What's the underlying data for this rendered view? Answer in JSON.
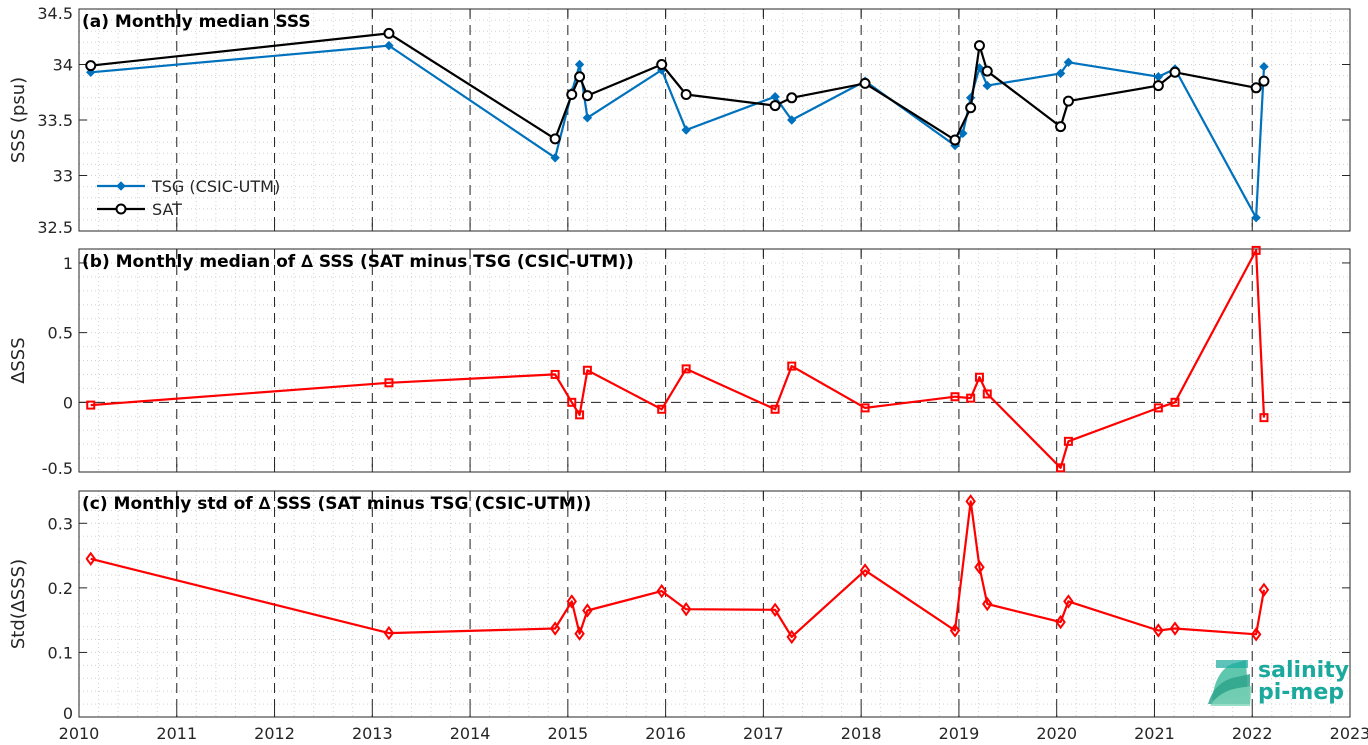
{
  "x_axis": {
    "min": 2010,
    "max": 2023,
    "ticks": [
      "2010",
      "2011",
      "2012",
      "2013",
      "2014",
      "2015",
      "2016",
      "2017",
      "2018",
      "2019",
      "2020",
      "2021",
      "2022",
      "2023"
    ]
  },
  "chart_data": [
    {
      "type": "line",
      "title": "(a) Monthly median SSS",
      "ylabel": "SSS (psu)",
      "ylim": [
        32.5,
        34.5
      ],
      "yticks": [
        "32.5",
        "33",
        "33.5",
        "34",
        "34.5"
      ],
      "legend_position": "bottom-left",
      "series": [
        {
          "name": "TSG (CSIC-UTM)",
          "color": "#0072BD",
          "marker": "dot",
          "x": [
            2010.12,
            2013.17,
            2014.87,
            2015.04,
            2015.12,
            2015.2,
            2015.96,
            2016.21,
            2017.12,
            2017.29,
            2018.04,
            2018.96,
            2019.04,
            2019.12,
            2019.21,
            2019.29,
            2020.04,
            2020.12,
            2021.04,
            2021.21,
            2022.04,
            2022.12
          ],
          "values": [
            33.93,
            34.17,
            33.16,
            33.75,
            34.0,
            33.52,
            33.95,
            33.41,
            33.71,
            33.5,
            33.85,
            33.27,
            33.38,
            33.7,
            33.97,
            33.81,
            33.92,
            34.02,
            33.89,
            33.96,
            32.62,
            33.98
          ]
        },
        {
          "name": "SAT",
          "color": "#000000",
          "marker": "circle",
          "x": [
            2010.12,
            2013.17,
            2014.87,
            2015.04,
            2015.12,
            2015.2,
            2015.96,
            2016.21,
            2017.12,
            2017.29,
            2018.04,
            2018.96,
            2019.12,
            2019.21,
            2019.29,
            2020.04,
            2020.12,
            2021.04,
            2021.21,
            2022.04,
            2022.12
          ],
          "values": [
            33.99,
            34.28,
            33.33,
            33.73,
            33.89,
            33.72,
            34.0,
            33.73,
            33.63,
            33.7,
            33.83,
            33.32,
            33.61,
            34.17,
            33.94,
            33.44,
            33.67,
            33.81,
            33.93,
            33.79,
            33.85
          ]
        }
      ]
    },
    {
      "type": "line",
      "title": "(b) Monthly median of ∆ SSS (SAT minus TSG (CSIC-UTM))",
      "ylabel": "∆SSS",
      "ylim": [
        -0.5,
        1.1
      ],
      "yticks": [
        "-0.5",
        "0",
        "0.5",
        "1"
      ],
      "zero_line": true,
      "series": [
        {
          "name": "",
          "color": "#FF0000",
          "marker": "square",
          "x": [
            2010.12,
            2013.17,
            2014.87,
            2015.04,
            2015.12,
            2015.2,
            2015.96,
            2016.21,
            2017.12,
            2017.29,
            2018.04,
            2018.96,
            2019.12,
            2019.21,
            2019.29,
            2020.04,
            2020.12,
            2021.04,
            2021.21,
            2022.04,
            2022.12
          ],
          "values": [
            -0.02,
            0.14,
            0.2,
            0.0,
            -0.09,
            0.23,
            -0.05,
            0.24,
            -0.05,
            0.26,
            -0.04,
            0.04,
            0.03,
            0.18,
            0.06,
            -0.47,
            -0.28,
            -0.04,
            0.0,
            1.09,
            -0.11
          ]
        }
      ]
    },
    {
      "type": "line",
      "title": "(c) Monthly std of ∆ SSS (SAT minus TSG (CSIC-UTM))",
      "ylabel": "Std(∆SSS)",
      "ylim": [
        0,
        0.35
      ],
      "yticks": [
        "0",
        "0.1",
        "0.2",
        "0.3"
      ],
      "series": [
        {
          "name": "",
          "color": "#FF0000",
          "marker": "diamond",
          "x": [
            2010.12,
            2013.17,
            2014.87,
            2015.04,
            2015.12,
            2015.2,
            2015.96,
            2016.21,
            2017.12,
            2017.29,
            2018.04,
            2018.96,
            2019.12,
            2019.21,
            2019.29,
            2020.04,
            2020.12,
            2021.04,
            2021.21,
            2022.04,
            2022.12
          ],
          "values": [
            0.245,
            0.13,
            0.137,
            0.179,
            0.129,
            0.165,
            0.195,
            0.167,
            0.166,
            0.124,
            0.227,
            0.134,
            0.334,
            0.232,
            0.175,
            0.147,
            0.179,
            0.134,
            0.137,
            0.128,
            0.197
          ]
        }
      ]
    }
  ],
  "logo": {
    "line1": "salinity",
    "line2": "pi-mep"
  },
  "colors": {
    "logo_text": "#1aa99c",
    "logo_mark": "#4fc1a6",
    "axis": "#262626",
    "grid_major": "#000000",
    "grid_minor": "#d9d9d9"
  }
}
